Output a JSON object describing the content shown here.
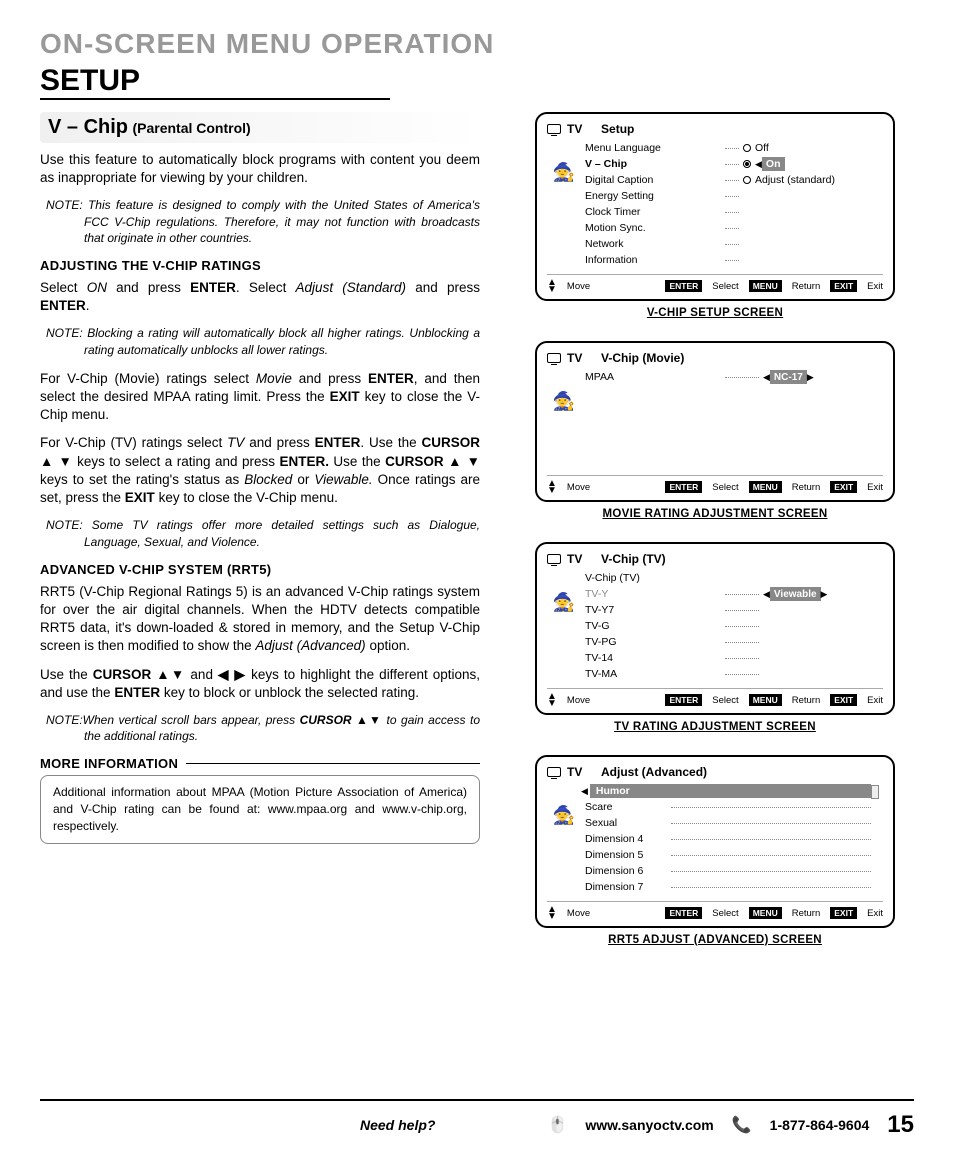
{
  "page_title": "ON-SCREEN MENU OPERATION",
  "setup_title": "SETUP",
  "section": {
    "main": "V – Chip",
    "sub": "(Parental Control)"
  },
  "intro": "Use this feature to automatically block programs with content you deem as inappropriate for viewing by your children.",
  "note1_prefix": "NOTE:",
  "note1": "This feature is designed to comply with the United States of America's FCC V-Chip regulations. Therefore, it may not function with broadcasts that originate in other countries.",
  "h_adjust": "ADJUSTING THE V-CHIP RATINGS",
  "p_adjust": "Select <i>ON</i> and press <b>ENTER</b>. Select <i>Adjust (Standard)</i> and press <b>ENTER</b>.",
  "note2": "Blocking a rating will automatically block all higher ratings. Unblocking a rating automatically unblocks all lower ratings.",
  "p_movie": "For V-Chip (Movie) ratings select <i>Movie</i> and press <b>ENTER</b>, and then select the desired MPAA rating limit. Press the <b>EXIT</b> key to close the V-Chip menu.",
  "p_tv": "For V-Chip (TV) ratings select <i>TV</i> and press <b>ENTER</b>. Use the <b>CURSOR ▲ ▼</b> keys to select a rating and press <b>ENTER.</b> Use the <b>CURSOR ▲ ▼</b> keys to set the rating's status as <i>Blocked</i> or <i>Viewable.</i> Once ratings are set, press the <b>EXIT</b> key to close the V-Chip menu.",
  "note3": "Some TV ratings offer more detailed settings such as Dialogue, Language, Sexual, and Violence.",
  "h_advanced": "ADVANCED V-CHIP SYSTEM (RRT5)",
  "p_adv1": "RRT5 (V-Chip Regional Ratings 5) is an advanced V-Chip ratings system for over the air digital channels. When the HDTV detects compatible RRT5 data, it's down-loaded & stored in memory, and the Setup V-Chip screen is then modified to show the <i>Adjust (Advanced)</i> option.",
  "p_adv2": "Use the <b>CURSOR ▲▼</b> and <b>◀ ▶</b> keys to highlight the different options, and use the <b>ENTER</b> key to block or unblock the selected rating.",
  "note4_prefix": "NOTE:",
  "note4a": "When vertical scroll bars appear, press ",
  "note4b": "CURSOR ▲▼",
  "note4c": " to gain access to the additional ratings.",
  "h_more": "MORE INFORMATION",
  "p_more": "Additional information about MPAA (Motion Picture Association of America) and V-Chip rating can be found at: www.mpaa.org and www.v-chip.org, respectively.",
  "osd1": {
    "caption": "V-CHIP SETUP SCREEN",
    "title": "Setup",
    "items": [
      "Menu Language",
      "V – Chip",
      "Digital Caption",
      "Energy Setting",
      "Clock Timer",
      "Motion Sync.",
      "Network",
      "Information"
    ],
    "values": {
      "0": "Off",
      "1": "On",
      "2": "Adjust (standard)"
    },
    "selected_index": 1
  },
  "osd2": {
    "caption": "MOVIE RATING ADJUSTMENT SCREEN",
    "title": "V-Chip (Movie)",
    "item": "MPAA",
    "value": "NC-17"
  },
  "osd3": {
    "caption": "TV RATING ADJUSTMENT SCREEN",
    "title": "V-Chip (TV)",
    "header_item": "V-Chip (TV)",
    "items": [
      "TV-Y",
      "TV-Y7",
      "TV-G",
      "TV-PG",
      "TV-14",
      "TV-MA"
    ],
    "value": "Viewable",
    "selected_index": 0
  },
  "osd4": {
    "caption": "RRT5 ADJUST (ADVANCED) SCREEN",
    "title": "Adjust (Advanced)",
    "items": [
      "Humor",
      "Scare",
      "Sexual",
      "Dimension 4",
      "Dimension 5",
      "Dimension 6",
      "Dimension 7"
    ],
    "selected_index": 0
  },
  "osd_footer": {
    "move": "Move",
    "enter": "ENTER",
    "select": "Select",
    "menu": "MENU",
    "return": "Return",
    "exit": "EXIT",
    "exit2": "Exit"
  },
  "tv_label": "TV",
  "footer": {
    "need": "Need help?",
    "url": "www.sanyoctv.com",
    "phone": "1-877-864-9604",
    "page": "15"
  },
  "colors": {
    "gray_text": "#999999",
    "sel_bg": "#888888"
  }
}
